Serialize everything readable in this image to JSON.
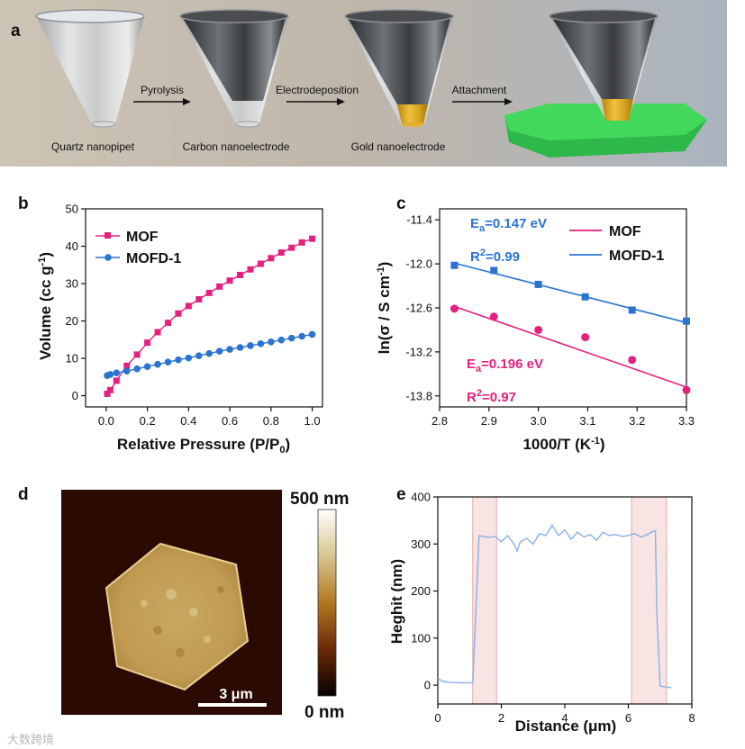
{
  "panel_labels": {
    "a": "a",
    "b": "b",
    "c": "c",
    "d": "d",
    "e": "e"
  },
  "scheme": {
    "steps": [
      "Quartz nanopipet",
      "Carbon nanoelectrode",
      "Gold nanoelectrode"
    ],
    "arrows": [
      "Pyrolysis",
      "Electrodeposition",
      "Attachment"
    ]
  },
  "watermark": "大数跨境",
  "colors": {
    "mof": "#e6207f",
    "mofd": "#2a74d0",
    "profile": "#8fb4e6",
    "band": "#f6d8d8"
  },
  "chart_data": [
    {
      "id": "b",
      "type": "line",
      "xlabel": "Relative Pressure (P/P",
      "xlabel_sub": "0",
      "xlabel_tail": ")",
      "ylabel": "Volume (cc g",
      "ylabel_sup": "-1",
      "ylabel_tail": ")",
      "xlim": [
        -0.1,
        1.05
      ],
      "ylim": [
        -3,
        50
      ],
      "xticks": [
        "0.0",
        "0.2",
        "0.4",
        "0.6",
        "0.8",
        "1.0"
      ],
      "xtick_values": [
        0,
        0.2,
        0.4,
        0.6,
        0.8,
        1.0
      ],
      "yticks": [
        "0",
        "10",
        "20",
        "30",
        "40",
        "50"
      ],
      "ytick_values": [
        0,
        10,
        20,
        30,
        40,
        50
      ],
      "legend": [
        "MOF",
        "MOFD-1"
      ],
      "series": [
        {
          "name": "MOF",
          "marker": "square",
          "x": [
            0.005,
            0.02,
            0.05,
            0.1,
            0.15,
            0.2,
            0.25,
            0.3,
            0.35,
            0.4,
            0.45,
            0.5,
            0.55,
            0.6,
            0.65,
            0.7,
            0.75,
            0.8,
            0.85,
            0.9,
            0.95,
            1.0
          ],
          "y": [
            0.5,
            1.5,
            4.0,
            8.0,
            11.0,
            14.2,
            17.0,
            19.5,
            22.0,
            24.0,
            25.8,
            27.5,
            29.2,
            30.8,
            32.3,
            33.8,
            35.3,
            36.8,
            38.3,
            39.6,
            41.0,
            42.0
          ]
        },
        {
          "name": "MOFD-1",
          "marker": "circle",
          "x": [
            0.005,
            0.02,
            0.05,
            0.1,
            0.15,
            0.2,
            0.25,
            0.3,
            0.35,
            0.4,
            0.45,
            0.5,
            0.55,
            0.6,
            0.65,
            0.7,
            0.75,
            0.8,
            0.85,
            0.9,
            0.95,
            1.0
          ],
          "y": [
            5.4,
            5.7,
            6.1,
            6.6,
            7.2,
            7.8,
            8.4,
            9.0,
            9.6,
            10.1,
            10.7,
            11.3,
            11.9,
            12.4,
            12.9,
            13.4,
            13.9,
            14.4,
            14.9,
            15.4,
            15.9,
            16.4
          ]
        }
      ]
    },
    {
      "id": "c",
      "type": "scatter",
      "xlabel": "1000/T (K",
      "xlabel_sup": "-1",
      "xlabel_tail": ")",
      "ylabel": "ln(σ / S cm",
      "ylabel_sup": "-1",
      "ylabel_tail": ")",
      "xlim": [
        2.8,
        3.3
      ],
      "ylim": [
        -13.95,
        -11.25
      ],
      "xticks": [
        "2.8",
        "2.9",
        "3.0",
        "3.1",
        "3.2",
        "3.3"
      ],
      "xtick_values": [
        2.8,
        2.9,
        3.0,
        3.1,
        3.2,
        3.3
      ],
      "yticks": [
        "-11.4",
        "-12.0",
        "-12.6",
        "-13.2",
        "-13.8"
      ],
      "ytick_values": [
        -11.4,
        -12.0,
        -12.6,
        -13.2,
        -13.8
      ],
      "legend": [
        "MOF",
        "MOFD-1"
      ],
      "annotations": {
        "mofd_ea": "E",
        "mofd_ea_sub": "a",
        "mofd_ea_val": "=0.147 eV",
        "mofd_r2": "R",
        "mofd_r2_sup": "2",
        "mofd_r2_val": "=0.99",
        "mof_ea": "E",
        "mof_ea_sub": "a",
        "mof_ea_val": "=0.196 eV",
        "mof_r2": "R",
        "mof_r2_sup": "2",
        "mof_r2_val": "=0.97"
      },
      "series": [
        {
          "name": "MOFD-1",
          "marker": "square",
          "x": [
            2.83,
            2.91,
            3.0,
            3.095,
            3.19,
            3.3
          ],
          "y": [
            -12.02,
            -12.09,
            -12.28,
            -12.45,
            -12.63,
            -12.78
          ],
          "fit": {
            "x": [
              2.83,
              3.3
            ],
            "y": [
              -11.99,
              -12.8
            ]
          }
        },
        {
          "name": "MOF",
          "marker": "circle",
          "x": [
            2.83,
            2.91,
            3.0,
            3.095,
            3.19,
            3.3
          ],
          "y": [
            -12.61,
            -12.72,
            -12.9,
            -13.0,
            -13.31,
            -13.72
          ],
          "fit": {
            "x": [
              2.83,
              3.3
            ],
            "y": [
              -12.58,
              -13.68
            ]
          }
        }
      ]
    },
    {
      "id": "d",
      "type": "heatmap",
      "colorbar_top": "500 nm",
      "colorbar_bottom": "0 nm",
      "scalebar": "3 μm"
    },
    {
      "id": "e",
      "type": "line",
      "xlabel": "Distance (μm)",
      "ylabel": "Heghit (nm)",
      "xlim": [
        0,
        8
      ],
      "ylim": [
        -40,
        400
      ],
      "xticks": [
        "0",
        "2",
        "4",
        "6",
        "8"
      ],
      "xtick_values": [
        0,
        2,
        4,
        6,
        8
      ],
      "yticks": [
        "0",
        "100",
        "200",
        "300",
        "400"
      ],
      "ytick_values": [
        0,
        100,
        200,
        300,
        400
      ],
      "highlight_bands": [
        [
          1.1,
          1.85
        ],
        [
          6.1,
          7.2
        ]
      ],
      "series": [
        {
          "name": "height profile",
          "x": [
            0,
            0.15,
            0.4,
            0.7,
            1.0,
            1.1,
            1.2,
            1.3,
            1.45,
            1.6,
            1.8,
            2.0,
            2.2,
            2.4,
            2.5,
            2.6,
            2.8,
            3.0,
            3.2,
            3.4,
            3.6,
            3.8,
            4.0,
            4.2,
            4.4,
            4.6,
            4.8,
            5.0,
            5.2,
            5.4,
            5.6,
            5.8,
            6.0,
            6.2,
            6.4,
            6.6,
            6.75,
            6.85,
            6.9,
            7.0,
            7.2,
            7.35
          ],
          "y": [
            15,
            8,
            6,
            5,
            5,
            5,
            160,
            318,
            316,
            314,
            316,
            305,
            318,
            300,
            285,
            305,
            312,
            300,
            322,
            318,
            340,
            318,
            330,
            310,
            325,
            315,
            320,
            308,
            325,
            318,
            320,
            316,
            318,
            322,
            315,
            320,
            326,
            328,
            150,
            -2,
            -4,
            -5
          ]
        }
      ]
    }
  ]
}
